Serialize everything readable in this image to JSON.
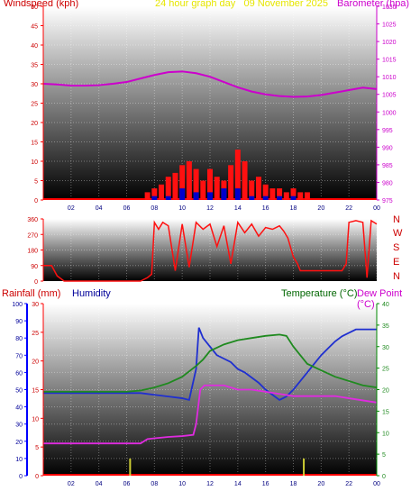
{
  "colors": {
    "wind": "#cc0000",
    "wind_label": "#cc0000",
    "title": "#e6e600",
    "baro": "#cc00cc",
    "rain_label": "#cc0000",
    "humidity_label": "#000099",
    "temp_label": "#006600",
    "dew_label": "#cc00cc",
    "humidity": "#1f2fd0",
    "temp": "#1f8a1f",
    "dew": "#e02be0",
    "grid": "#ffffff",
    "axis_red": "#ff0000",
    "axis_blue": "#0000ff",
    "axis_green": "#008800"
  },
  "header": {
    "wind_label": "Windspeed (kph)",
    "title": "24 hour graph day   09 November 2025",
    "baro_label": "Barometer (hpa)"
  },
  "compass": [
    "N",
    "W",
    "S",
    "E",
    "N"
  ],
  "bottom_labels": {
    "rain": "Rainfall (mm)",
    "humidity": "Humidity",
    "temp": "Temperature (°C)",
    "dew": "Dew Point (°C)"
  },
  "chart_data": [
    {
      "type": "line",
      "title": "24 hour graph day   09 November 2025",
      "x_ticks": [
        "02",
        "04",
        "06",
        "08",
        "10",
        "12",
        "14",
        "16",
        "18",
        "20",
        "22",
        "00"
      ],
      "xlim": [
        0,
        24
      ],
      "wind_axis": {
        "label": "Windspeed (kph)",
        "ticks": [
          0,
          5,
          10,
          15,
          20,
          25,
          30,
          35,
          40,
          45,
          50
        ],
        "ylim": [
          0,
          50
        ]
      },
      "baro_axis": {
        "label": "Barometer (hpa)",
        "ticks": [
          975,
          980,
          985,
          990,
          995,
          1000,
          1005,
          1010,
          1015,
          1020,
          1025,
          1030
        ],
        "ylim": [
          975,
          1030
        ]
      },
      "series": [
        {
          "name": "Barometer (hpa)",
          "axis": "baro",
          "x": [
            0,
            1,
            2,
            3,
            4,
            5,
            6,
            7,
            8,
            9,
            10,
            11,
            12,
            13,
            14,
            15,
            16,
            17,
            18,
            19,
            20,
            21,
            22,
            23,
            24
          ],
          "values": [
            1008,
            1007.8,
            1007.5,
            1007.5,
            1007.6,
            1008,
            1008.5,
            1009.5,
            1010.5,
            1011.3,
            1011.5,
            1011,
            1010,
            1008.5,
            1007,
            1005.8,
            1005,
            1004.5,
            1004.3,
            1004.4,
            1004.8,
            1005.5,
            1006.2,
            1006.9,
            1006.5
          ]
        },
        {
          "name": "Windspeed (kph)",
          "axis": "wind",
          "style": "bars",
          "x": [
            7.5,
            8.0,
            8.5,
            9.0,
            9.5,
            10.0,
            10.5,
            11.0,
            11.5,
            12.0,
            12.5,
            13.0,
            13.5,
            14.0,
            14.5,
            15.0,
            15.5,
            16.0,
            16.5,
            17.0,
            17.5,
            18.0,
            18.5,
            19.0
          ],
          "values": [
            2,
            3,
            4,
            6,
            7,
            9,
            10,
            8,
            5,
            8,
            6,
            5,
            9,
            13,
            10,
            5,
            6,
            4,
            3,
            3,
            2,
            3,
            2,
            2
          ]
        },
        {
          "name": "Gust (kph)",
          "axis": "wind",
          "style": "bars",
          "x": [
            8.0,
            9.0,
            10.0,
            11.0,
            12.0,
            13.0,
            14.0,
            15.0,
            16.0,
            17.0,
            18.0
          ],
          "values": [
            1,
            1,
            3,
            2,
            2,
            3,
            3,
            1,
            1,
            1,
            1
          ]
        }
      ]
    },
    {
      "type": "line",
      "x_ticks": [
        "02",
        "04",
        "06",
        "08",
        "10",
        "12",
        "14",
        "16",
        "18",
        "20",
        "22",
        "00"
      ],
      "xlim": [
        0,
        24
      ],
      "ylabel": "Wind Direction",
      "y_ticks": [
        0,
        90,
        180,
        270,
        360
      ],
      "ylim": [
        0,
        360
      ],
      "series": [
        {
          "name": "Wind Direction",
          "x": [
            0,
            0.3,
            0.6,
            1.0,
            1.5,
            2,
            3,
            4,
            5,
            6,
            7,
            7.5,
            7.8,
            8.0,
            8.3,
            8.6,
            9,
            9.5,
            10,
            10.5,
            11,
            11.5,
            12,
            12.5,
            13,
            13.5,
            14,
            14.5,
            15,
            15.5,
            16,
            16.5,
            17,
            17.3,
            17.6,
            18,
            18.3,
            18.5,
            19,
            20,
            21,
            21.5,
            21.8,
            22,
            22.5,
            23,
            23.3,
            23.6,
            24
          ],
          "values": [
            90,
            90,
            90,
            30,
            0,
            0,
            0,
            0,
            0,
            0,
            0,
            20,
            40,
            340,
            300,
            340,
            320,
            60,
            330,
            80,
            340,
            300,
            330,
            200,
            320,
            100,
            340,
            280,
            330,
            260,
            310,
            300,
            320,
            290,
            250,
            140,
            100,
            60,
            60,
            60,
            60,
            60,
            100,
            340,
            350,
            340,
            20,
            350,
            330
          ]
        }
      ]
    },
    {
      "type": "line",
      "x_ticks": [
        "02",
        "04",
        "06",
        "08",
        "10",
        "12",
        "14",
        "16",
        "18",
        "20",
        "22",
        "00"
      ],
      "xlim": [
        0,
        24
      ],
      "humidity_axis": {
        "label": "Humidity",
        "ticks": [
          0,
          10,
          20,
          30,
          40,
          50,
          60,
          70,
          80,
          90,
          100
        ],
        "ylim": [
          0,
          100
        ]
      },
      "rain_axis": {
        "label": "Rainfall (mm)",
        "ticks": [
          0,
          5,
          10,
          15,
          20,
          25,
          30
        ],
        "ylim": [
          0,
          30
        ]
      },
      "temp_axis": {
        "label": "Temperature (°C)",
        "ticks": [
          0,
          5,
          10,
          15,
          20,
          25,
          30,
          35,
          40
        ],
        "ylim": [
          0,
          40
        ]
      },
      "series": [
        {
          "name": "Humidity",
          "axis": "humidity",
          "x": [
            0,
            1,
            2,
            3,
            4,
            5,
            6,
            7,
            8,
            9,
            10,
            10.5,
            11,
            11.2,
            11.5,
            12,
            12.5,
            13,
            13.5,
            14,
            14.5,
            15,
            15.5,
            16,
            16.5,
            17,
            17.5,
            18,
            18.5,
            19,
            19.5,
            20,
            20.5,
            21,
            21.5,
            22,
            22.5,
            23,
            23.5,
            24
          ],
          "values": [
            48,
            48,
            48,
            48,
            48,
            48,
            48,
            48,
            47,
            46,
            45,
            44,
            62,
            86,
            80,
            75,
            70,
            68,
            66,
            62,
            60,
            57,
            54,
            50,
            47,
            44,
            46,
            50,
            55,
            60,
            65,
            70,
            74,
            78,
            81,
            83,
            85,
            85,
            85,
            85
          ]
        },
        {
          "name": "Temperature (°C)",
          "axis": "temp",
          "x": [
            0,
            2,
            4,
            6,
            7,
            8,
            9,
            10,
            11,
            11.5,
            12,
            13,
            14,
            15,
            16,
            17,
            17.5,
            18,
            18.5,
            19,
            20,
            21,
            22,
            23,
            24
          ],
          "values": [
            19.5,
            19.5,
            19.5,
            19.5,
            19.8,
            20.5,
            21.5,
            23,
            25.5,
            27,
            29,
            30.5,
            31.5,
            32,
            32.5,
            32.8,
            32.5,
            30,
            28,
            26,
            24.5,
            23,
            22,
            21,
            20.5
          ]
        },
        {
          "name": "Dew Point (°C)",
          "axis": "temp",
          "x": [
            0,
            2,
            4,
            6,
            7,
            7.5,
            8,
            9,
            10,
            10.8,
            11.0,
            11.3,
            11.6,
            12,
            13,
            14,
            15,
            16,
            17,
            18,
            19,
            20,
            21,
            22,
            23,
            24
          ],
          "values": [
            7.5,
            7.5,
            7.5,
            7.5,
            7.5,
            8.5,
            8.7,
            9,
            9.2,
            9.5,
            12,
            20,
            21,
            21,
            21,
            20,
            20,
            19.5,
            19,
            18.5,
            18.5,
            18.5,
            18.5,
            18,
            17.5,
            17
          ]
        },
        {
          "name": "Rainfall (mm)",
          "axis": "rain",
          "style": "bars",
          "x": [
            6.25,
            18.75
          ],
          "values": [
            3,
            3
          ]
        }
      ]
    }
  ]
}
